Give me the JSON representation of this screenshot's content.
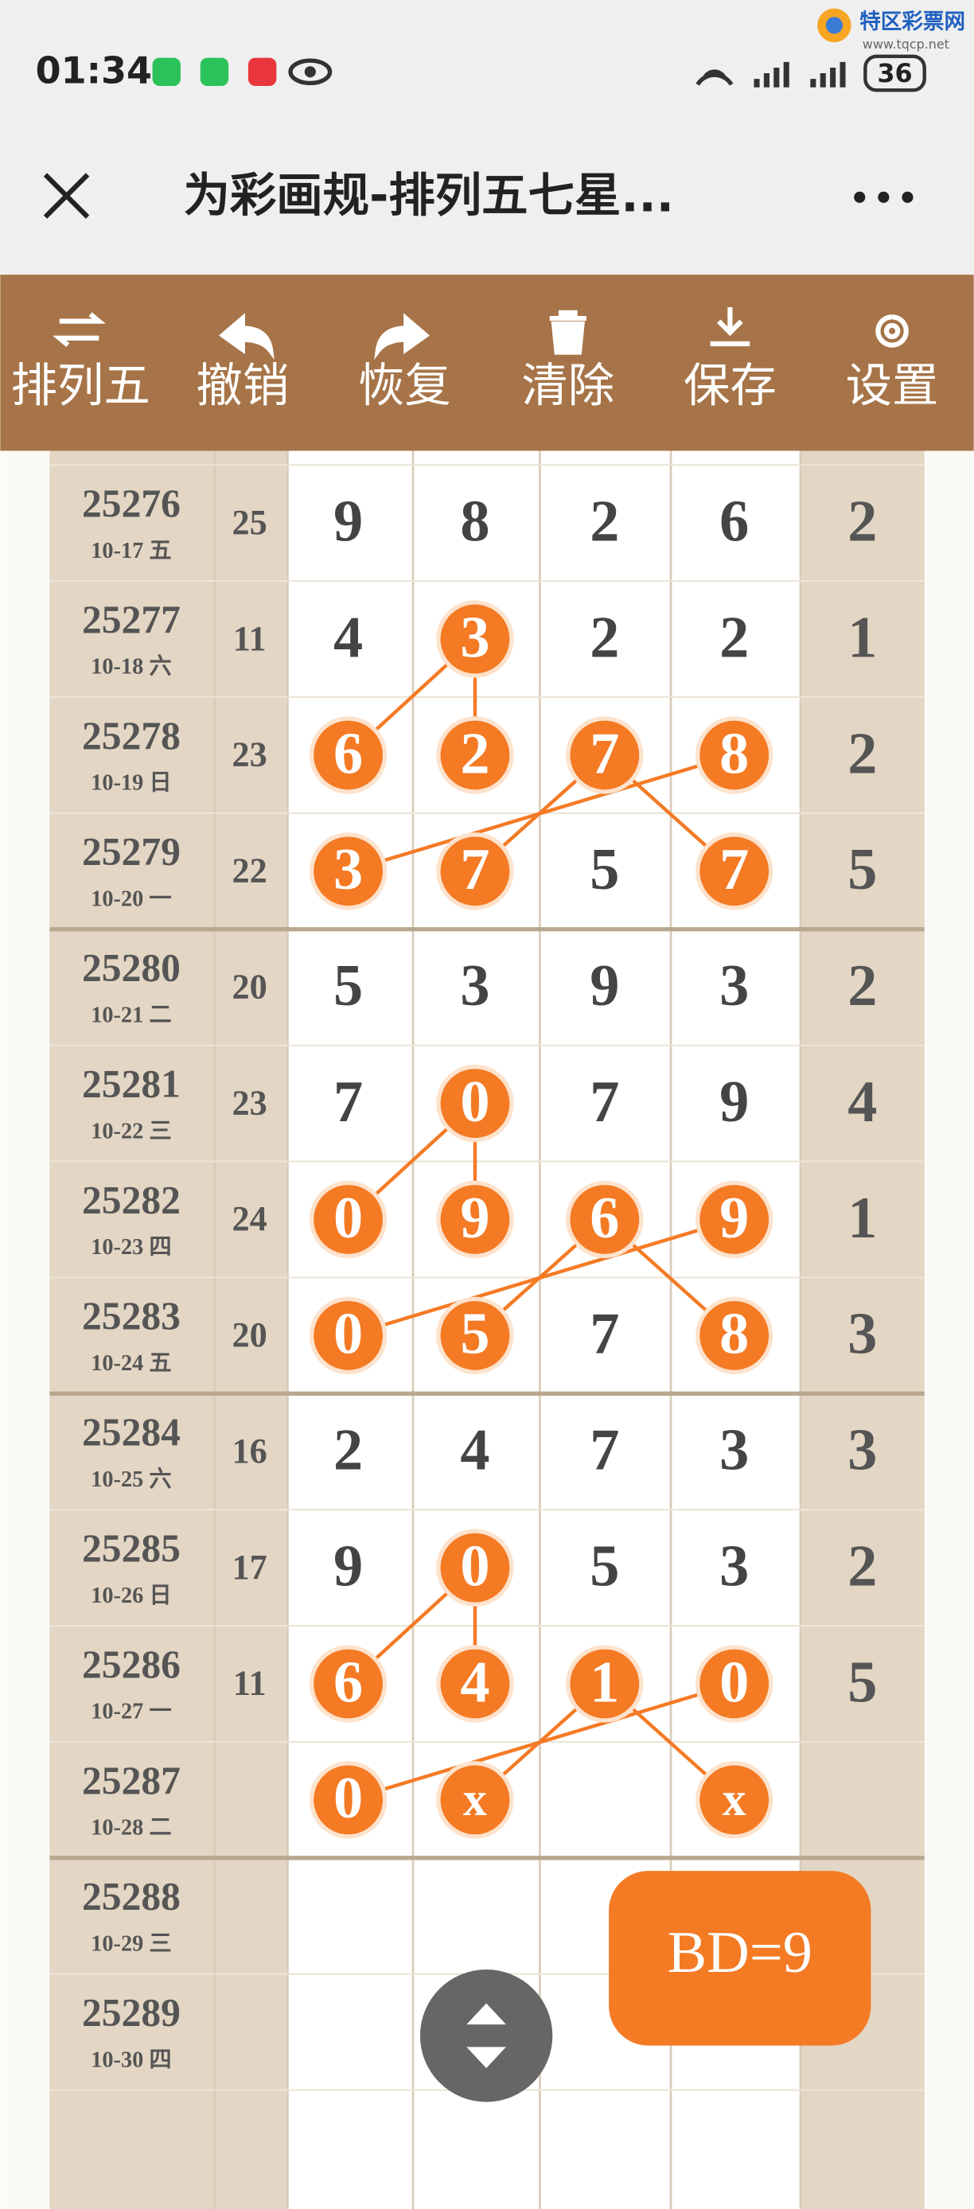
{
  "status_bar": {
    "time": "01:34",
    "battery": "36"
  },
  "watermark": {
    "name": "特区彩票网",
    "url": "www.tqcp.net"
  },
  "title_bar": {
    "title": "为彩画规-排列五七星..."
  },
  "toolbar": {
    "buttons": [
      "排列五",
      "撤销",
      "恢复",
      "清除",
      "保存",
      "设置"
    ]
  },
  "table": {
    "rows": [
      {
        "issue": "25276",
        "date": "10-17 五",
        "sum": 25,
        "digits": [
          9,
          8,
          2,
          6
        ],
        "circled": [],
        "last": 2
      },
      {
        "issue": "25277",
        "date": "10-18 六",
        "sum": 11,
        "digits": [
          4,
          3,
          2,
          2
        ],
        "circled": [
          1
        ],
        "last": 1
      },
      {
        "issue": "25278",
        "date": "10-19 日",
        "sum": 23,
        "digits": [
          6,
          2,
          7,
          8
        ],
        "circled": [
          0,
          1,
          2,
          3
        ],
        "last": 2
      },
      {
        "issue": "25279",
        "date": "10-20 一",
        "sum": 22,
        "digits": [
          3,
          7,
          5,
          7
        ],
        "circled": [
          0,
          1,
          3
        ],
        "last": 5
      },
      {
        "issue": "25280",
        "date": "10-21 二",
        "sum": 20,
        "digits": [
          5,
          3,
          9,
          3
        ],
        "circled": [],
        "last": 2
      },
      {
        "issue": "25281",
        "date": "10-22 三",
        "sum": 23,
        "digits": [
          7,
          0,
          7,
          9
        ],
        "circled": [
          1
        ],
        "last": 4
      },
      {
        "issue": "25282",
        "date": "10-23 四",
        "sum": 24,
        "digits": [
          0,
          9,
          6,
          9
        ],
        "circled": [
          0,
          1,
          2,
          3
        ],
        "last": 1
      },
      {
        "issue": "25283",
        "date": "10-24 五",
        "sum": 20,
        "digits": [
          0,
          5,
          7,
          8
        ],
        "circled": [
          0,
          1,
          3
        ],
        "last": 3
      },
      {
        "issue": "25284",
        "date": "10-25 六",
        "sum": 16,
        "digits": [
          2,
          4,
          7,
          3
        ],
        "circled": [],
        "last": 3
      },
      {
        "issue": "25285",
        "date": "10-26 日",
        "sum": 17,
        "digits": [
          9,
          0,
          5,
          3
        ],
        "circled": [
          1
        ],
        "last": 2
      },
      {
        "issue": "25286",
        "date": "10-27 一",
        "sum": 11,
        "digits": [
          6,
          4,
          1,
          0
        ],
        "circled": [
          0,
          1,
          2,
          3
        ],
        "last": 5
      },
      {
        "issue": "25287",
        "date": "10-28 二",
        "sum": null,
        "digits": [
          0,
          "x",
          null,
          "x"
        ],
        "circled": [
          0,
          1,
          3
        ],
        "last": null
      },
      {
        "issue": "25288",
        "date": "10-29 三",
        "sum": null,
        "digits": [
          null,
          null,
          null,
          null
        ],
        "circled": [],
        "last": null
      },
      {
        "issue": "25289",
        "date": "10-30 四",
        "sum": null,
        "digits": [
          null,
          null,
          null,
          null
        ],
        "circled": [],
        "last": null
      }
    ]
  },
  "badge": "BD=9"
}
